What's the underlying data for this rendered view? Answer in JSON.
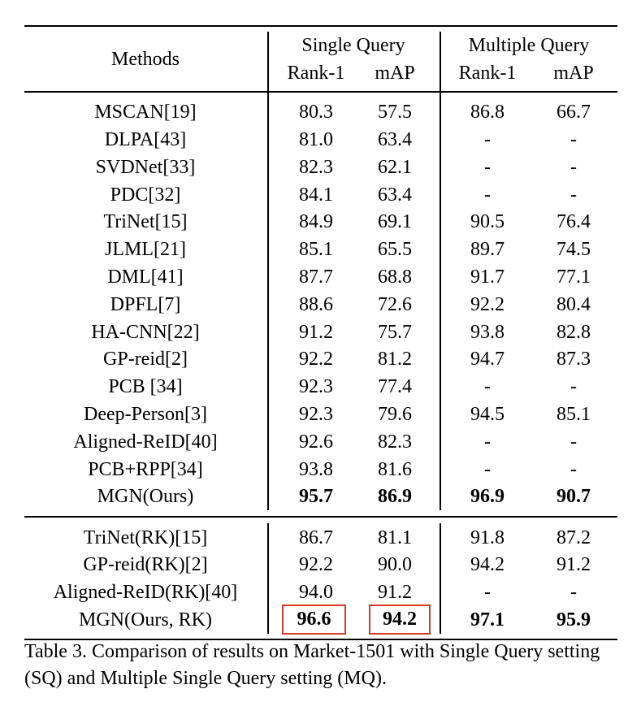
{
  "table": {
    "header": {
      "methods": "Methods",
      "single_query": "Single Query",
      "multiple_query": "Multiple Query",
      "rank1": "Rank-1",
      "map": "mAP"
    },
    "rows_main": [
      {
        "method": "MSCAN[19]",
        "sq_rank1": "80.3",
        "sq_map": "57.5",
        "mq_rank1": "86.8",
        "mq_map": "66.7"
      },
      {
        "method": "DLPA[43]",
        "sq_rank1": "81.0",
        "sq_map": "63.4",
        "mq_rank1": "-",
        "mq_map": "-"
      },
      {
        "method": "SVDNet[33]",
        "sq_rank1": "82.3",
        "sq_map": "62.1",
        "mq_rank1": "-",
        "mq_map": "-"
      },
      {
        "method": "PDC[32]",
        "sq_rank1": "84.1",
        "sq_map": "63.4",
        "mq_rank1": "-",
        "mq_map": "-"
      },
      {
        "method": "TriNet[15]",
        "sq_rank1": "84.9",
        "sq_map": "69.1",
        "mq_rank1": "90.5",
        "mq_map": "76.4"
      },
      {
        "method": "JLML[21]",
        "sq_rank1": "85.1",
        "sq_map": "65.5",
        "mq_rank1": "89.7",
        "mq_map": "74.5"
      },
      {
        "method": "DML[41]",
        "sq_rank1": "87.7",
        "sq_map": "68.8",
        "mq_rank1": "91.7",
        "mq_map": "77.1"
      },
      {
        "method": "DPFL[7]",
        "sq_rank1": "88.6",
        "sq_map": "72.6",
        "mq_rank1": "92.2",
        "mq_map": "80.4"
      },
      {
        "method": "HA-CNN[22]",
        "sq_rank1": "91.2",
        "sq_map": "75.7",
        "mq_rank1": "93.8",
        "mq_map": "82.8"
      },
      {
        "method": "GP-reid[2]",
        "sq_rank1": "92.2",
        "sq_map": "81.2",
        "mq_rank1": "94.7",
        "mq_map": "87.3"
      },
      {
        "method": "PCB [34]",
        "sq_rank1": "92.3",
        "sq_map": "77.4",
        "mq_rank1": "-",
        "mq_map": "-"
      },
      {
        "method": "Deep-Person[3]",
        "sq_rank1": "92.3",
        "sq_map": "79.6",
        "mq_rank1": "94.5",
        "mq_map": "85.1"
      },
      {
        "method": "Aligned-ReID[40]",
        "sq_rank1": "92.6",
        "sq_map": "82.3",
        "mq_rank1": "-",
        "mq_map": "-"
      },
      {
        "method": "PCB+RPP[34]",
        "sq_rank1": "93.8",
        "sq_map": "81.6",
        "mq_rank1": "-",
        "mq_map": "-"
      },
      {
        "method": "MGN(Ours)",
        "sq_rank1": "95.7",
        "sq_map": "86.9",
        "mq_rank1": "96.9",
        "mq_map": "90.7"
      }
    ],
    "rows_rk": [
      {
        "method": "TriNet(RK)[15]",
        "sq_rank1": "86.7",
        "sq_map": "81.1",
        "mq_rank1": "91.8",
        "mq_map": "87.2"
      },
      {
        "method": "GP-reid(RK)[2]",
        "sq_rank1": "92.2",
        "sq_map": "90.0",
        "mq_rank1": "94.2",
        "mq_map": "91.2"
      },
      {
        "method": "Aligned-ReID(RK)[40]",
        "sq_rank1": "94.0",
        "sq_map": "91.2",
        "mq_rank1": "-",
        "mq_map": "-"
      },
      {
        "method": "MGN(Ours, RK)",
        "sq_rank1": "96.6",
        "sq_map": "94.2",
        "mq_rank1": "97.1",
        "mq_map": "95.9"
      }
    ],
    "highlight_box_color": "#d23a2a"
  },
  "caption": "Table 3. Comparison of results on Market-1501 with Single Query setting (SQ) and Multiple Single Query setting (MQ)."
}
